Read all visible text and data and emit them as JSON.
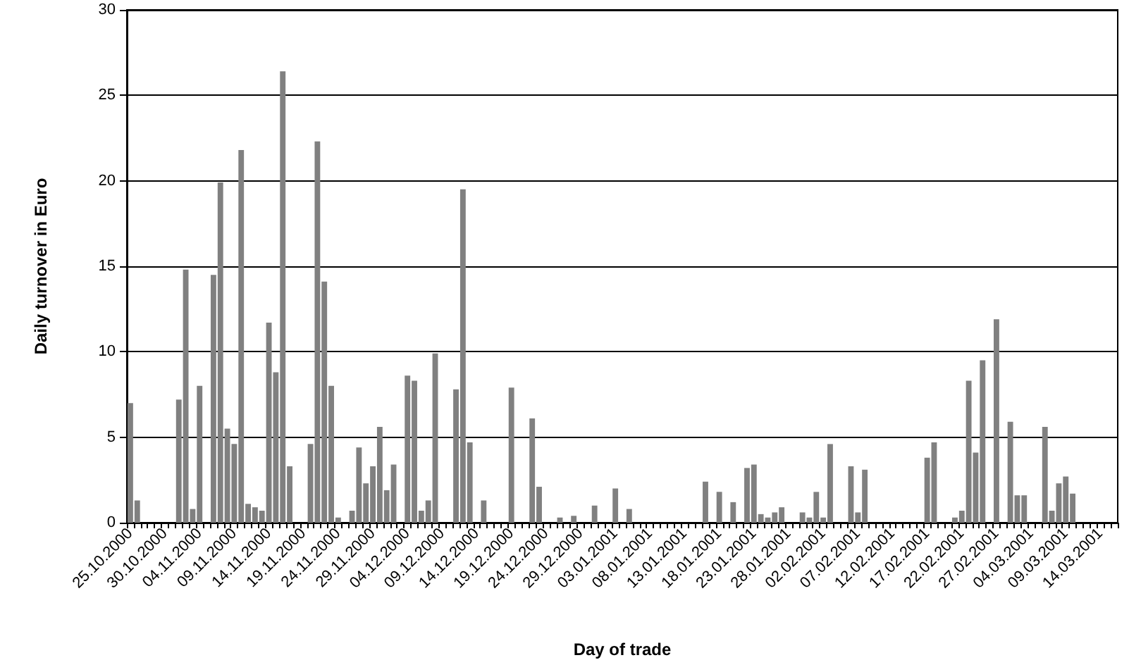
{
  "chart_data": {
    "type": "bar",
    "xlabel": "Day of trade",
    "ylabel": "Daily turnover in Euro",
    "categories": [
      "25.10.2000",
      null,
      null,
      null,
      null,
      "30.10.2000",
      null,
      null,
      null,
      null,
      "04.11.2000",
      null,
      null,
      null,
      null,
      "09.11.2000",
      null,
      null,
      null,
      null,
      "14.11.2000",
      null,
      null,
      null,
      null,
      "19.11.2000",
      null,
      null,
      null,
      null,
      "24.11.2000",
      null,
      null,
      null,
      null,
      "29.11.2000",
      null,
      null,
      null,
      null,
      "04.12.2000",
      null,
      null,
      null,
      null,
      "09.12.2000",
      null,
      null,
      null,
      null,
      "14.12.2000",
      null,
      null,
      null,
      null,
      "19.12.2000",
      null,
      null,
      null,
      null,
      "24.12.2000",
      null,
      null,
      null,
      null,
      "29.12.2000",
      null,
      null,
      null,
      null,
      "03.01.2001",
      null,
      null,
      null,
      null,
      "08.01.2001",
      null,
      null,
      null,
      null,
      "13.01.2001",
      null,
      null,
      null,
      null,
      "18.01.2001",
      null,
      null,
      null,
      null,
      "23.01.2001",
      null,
      null,
      null,
      null,
      "28.01.2001",
      null,
      null,
      null,
      null,
      "02.02.2001",
      null,
      null,
      null,
      null,
      "07.02.2001",
      null,
      null,
      null,
      null,
      "12.02.2001",
      null,
      null,
      null,
      null,
      "17.02.2001",
      null,
      null,
      null,
      null,
      "22.02.2001",
      null,
      null,
      null,
      null,
      "27.02.2001",
      null,
      null,
      null,
      null,
      "04.03.2001",
      null,
      null,
      null,
      null,
      "09.03.2001",
      null,
      null,
      null,
      null,
      "14.03.2001",
      null,
      null
    ],
    "values": [
      7.0,
      1.3,
      0,
      0,
      0,
      0,
      0,
      7.2,
      14.8,
      0.8,
      8.0,
      0,
      14.5,
      19.9,
      5.5,
      4.6,
      21.8,
      1.1,
      0.9,
      0.7,
      11.7,
      8.8,
      26.4,
      3.3,
      0,
      0,
      4.6,
      22.3,
      14.1,
      8.0,
      0.3,
      0,
      0.7,
      4.4,
      2.3,
      3.3,
      5.6,
      1.9,
      3.4,
      0,
      8.6,
      8.3,
      0.7,
      1.3,
      9.9,
      0,
      0,
      7.8,
      19.5,
      4.7,
      0,
      1.3,
      0,
      0,
      0,
      7.9,
      0,
      0,
      6.1,
      2.1,
      0,
      0,
      0.3,
      0,
      0.4,
      0,
      0,
      1.0,
      0,
      0,
      2.0,
      0,
      0.8,
      0,
      0,
      0,
      0,
      0,
      0,
      0,
      0,
      0,
      0,
      2.4,
      0,
      1.8,
      0,
      1.2,
      0,
      3.2,
      3.4,
      0.5,
      0.3,
      0.6,
      0.9,
      0,
      0,
      0.6,
      0.3,
      1.8,
      0.3,
      4.6,
      0,
      0,
      3.3,
      0.6,
      3.1,
      0,
      0,
      0,
      0,
      0,
      0,
      0,
      0,
      3.8,
      4.7,
      0,
      0,
      0.3,
      0.7,
      8.3,
      4.1,
      9.5,
      0,
      11.9,
      0,
      5.9,
      1.6,
      1.6,
      0,
      0,
      5.6,
      0.7,
      2.3,
      2.7,
      1.7,
      0,
      0,
      0,
      0,
      0,
      0
    ],
    "color": "#808080",
    "ylim": [
      0,
      30
    ],
    "yticks": [
      0,
      5,
      10,
      15,
      20,
      25,
      30
    ],
    "grid": "y"
  }
}
